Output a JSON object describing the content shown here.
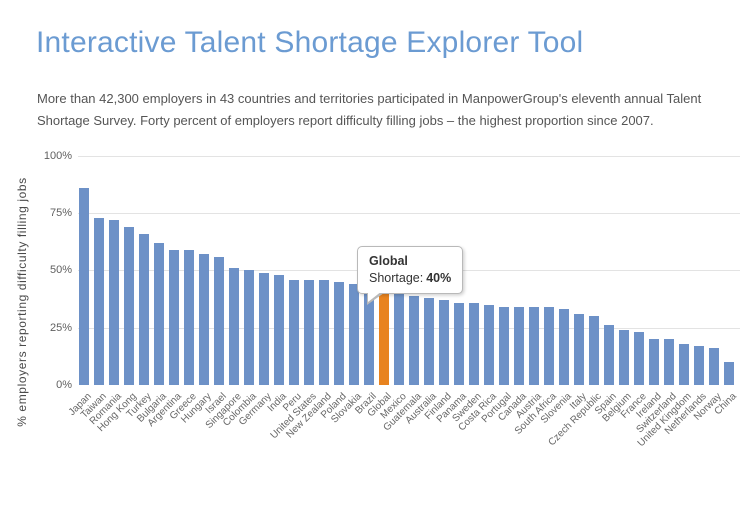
{
  "page": {
    "title": "Interactive Talent Shortage Explorer Tool",
    "subtitle_line1": "More than 42,300 employers in 43 countries and territories participated in ManpowerGroup's eleventh annual Talent",
    "subtitle_line2": "Shortage Survey. Forty percent of employers report difficulty filling jobs – the highest proportion since 2007."
  },
  "colors": {
    "title_blue": "#6b9bd2",
    "bar_blue": "#6d91c7",
    "bar_highlight_orange": "#e8831f",
    "gridline": "#e3e3e3",
    "axis_line": "#3a3a3a",
    "tick_label": "#606060",
    "x_label": "#666666",
    "axis_title": "#4a4a4a",
    "subtitle_text": "#555555",
    "tooltip_border": "#b9b9b9"
  },
  "tooltip": {
    "country": "Global",
    "label": "Shortage:",
    "value": "40%"
  },
  "chart_data": {
    "type": "bar",
    "title": "",
    "xlabel": "",
    "ylabel": "% employers reporting difficulty filling jobs",
    "ylim": [
      0,
      100
    ],
    "yticks": [
      0,
      25,
      50,
      75,
      100
    ],
    "ytick_labels": [
      "0%",
      "25%",
      "50%",
      "75%",
      "100%"
    ],
    "grid": true,
    "legend": "none",
    "highlight_category": "Global",
    "highlight_index": 20,
    "categories": [
      "Japan",
      "Taiwan",
      "Romania",
      "Hong Kong",
      "Turkey",
      "Bulgaria",
      "Argentina",
      "Greece",
      "Hungary",
      "Israel",
      "Singapore",
      "Colombia",
      "Germany",
      "India",
      "Peru",
      "United States",
      "New Zealand",
      "Poland",
      "Slovakia",
      "Brazil",
      "Global",
      "Mexico",
      "Guatemala",
      "Australia",
      "Finland",
      "Panama",
      "Sweden",
      "Costa Rica",
      "Portugal",
      "Canada",
      "Austria",
      "South Africa",
      "Slovenia",
      "Italy",
      "Czech Republic",
      "Spain",
      "Belgium",
      "France",
      "Ireland",
      "Switzerland",
      "United Kingdom",
      "Netherlands",
      "Norway",
      "China"
    ],
    "values": [
      86,
      73,
      72,
      69,
      66,
      62,
      59,
      59,
      57,
      56,
      51,
      50,
      49,
      48,
      46,
      46,
      46,
      45,
      44,
      43,
      40,
      40,
      39,
      38,
      37,
      36,
      36,
      35,
      34,
      34,
      34,
      34,
      33,
      31,
      30,
      26,
      24,
      23,
      20,
      20,
      18,
      17,
      16,
      10
    ]
  }
}
